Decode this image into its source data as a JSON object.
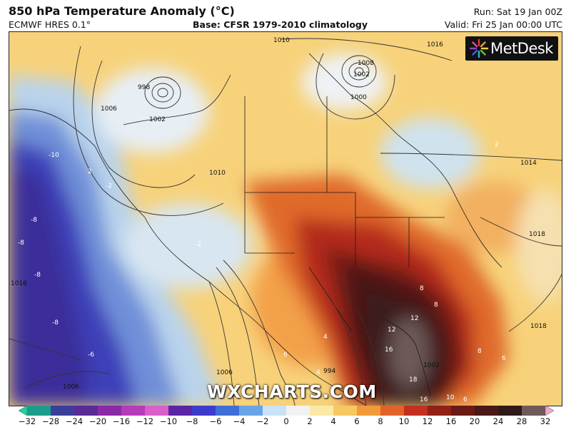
{
  "header": {
    "title": "850 hPa Temperature Anomaly (°C)",
    "model": "ECMWF HRES 0.1°",
    "base": "Base: CFSR 1979-2010 climatology",
    "run": "Run: Sat 19 Jan 00Z",
    "valid": "Valid: Fri 25 Jan 00:00 UTC"
  },
  "logo": {
    "text": "MetDesk"
  },
  "watermark": "WXCHARTS.COM",
  "colorbar": {
    "ticks": [
      "−32",
      "−28",
      "−24",
      "−20",
      "−16",
      "−12",
      "−10",
      "−8",
      "−6",
      "−4",
      "−2",
      "0",
      "2",
      "4",
      "6",
      "8",
      "10",
      "12",
      "16",
      "20",
      "24",
      "28",
      "32"
    ],
    "colors": [
      "#1fd19a",
      "#1a9e8a",
      "#3a3f9c",
      "#5a2a96",
      "#8b2aa6",
      "#b63bb8",
      "#d860c8",
      "#5b25a8",
      "#3c3ccc",
      "#3f6fd6",
      "#6aa4e6",
      "#c9e2f5",
      "#f2f2f2",
      "#fbe9a8",
      "#f6c861",
      "#f19a38",
      "#e2622a",
      "#c3301f",
      "#922016",
      "#6a1a14",
      "#4a1816",
      "#2e1a1a",
      "#6e5a5a",
      "#f0a8d0"
    ]
  },
  "map_labels": {
    "isobars": [
      "1010",
      "1016",
      "1008",
      "1002",
      "1000",
      "1002",
      "998",
      "1006",
      "1014",
      "1018",
      "1018",
      "1016",
      "1006",
      "1006",
      "1002",
      "994",
      "1010"
    ],
    "anomalies": [
      "-10",
      "-8",
      "-8",
      "-8",
      "-8",
      "-6",
      "-2",
      "2",
      "-2",
      "8",
      "8",
      "12",
      "16",
      "12",
      "18",
      "16",
      "10",
      "6",
      "8",
      "4",
      "6",
      "4",
      "2",
      "6"
    ]
  }
}
